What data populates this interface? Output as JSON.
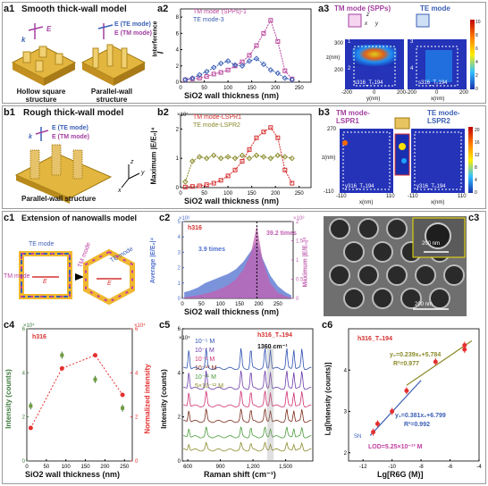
{
  "row1": {
    "a1": {
      "label": "a1",
      "title": "Smooth thick-wall model",
      "k": "k",
      "e": "E",
      "e_te": "E (TE mode)",
      "e_tm": "E (TM mode)",
      "s1": [
        "Hollow square",
        "structure"
      ],
      "s2": [
        "Parallel-wall",
        "structure"
      ],
      "axes": {
        "z": "z",
        "y": "y",
        "x": "x"
      }
    },
    "a2": {
      "label": "a2",
      "ylabel": "I",
      "ylabel_sub": "Interference",
      "xlabel": "SiO2 wall thickness (nm)",
      "chart_data": {
        "type": "line",
        "xlim": [
          0,
          275
        ],
        "ylim": [
          0,
          9
        ],
        "xticks": [
          0,
          50,
          100,
          150,
          200,
          250
        ],
        "yticks": [
          0,
          2,
          4,
          6,
          8
        ],
        "series": [
          {
            "name": "TM mode (SPPs)-1",
            "color": "#b8469b",
            "x": [
              10,
              25,
              40,
              55,
              70,
              85,
              100,
              115,
              130,
              145,
              160,
              175,
              190,
              205,
              220,
              235
            ],
            "y": [
              0.3,
              0.4,
              0.5,
              0.7,
              1.0,
              1.2,
              1.5,
              2.0,
              2.5,
              3.3,
              4.5,
              6.0,
              7.6,
              5.0,
              1.4,
              0.4
            ]
          },
          {
            "name": "TE mode-3",
            "color": "#3b5fb5",
            "x": [
              10,
              25,
              40,
              55,
              70,
              85,
              100,
              115,
              130,
              145,
              160,
              175,
              190,
              205,
              220,
              235
            ],
            "y": [
              0.3,
              0.5,
              0.9,
              1.3,
              1.8,
              2.3,
              2.6,
              2.1,
              2.0,
              2.6,
              2.9,
              2.2,
              1.5,
              1.1,
              0.5,
              0.3
            ]
          }
        ]
      }
    },
    "a3": {
      "label": "a3",
      "tm": "TM mode (SPPs)",
      "te": "TE mode",
      "ticks_y": [
        "300",
        "200"
      ],
      "ticks_x1": [
        "-200",
        "0",
        "200"
      ],
      "ticks_x2": [
        "-200",
        "0",
        "200"
      ],
      "xl1": "y(nm)",
      "xl2": "x(nm)",
      "yl": "z(nm)",
      "cap1": "s316_T₀194",
      "cap2": "s316_T₀194",
      "n1": "1",
      "n2": "2",
      "n3": "3",
      "n4": "4",
      "cb": [
        "10",
        "8",
        "6",
        "4",
        "2",
        "0"
      ],
      "axes": {
        "z": "z",
        "x": "x",
        "y": "y"
      }
    }
  },
  "row2": {
    "b1": {
      "label": "b1",
      "title": "Rough thick-wall model",
      "e_te": "E (TE mode)",
      "e_tm": "E (TM mode)",
      "k": "k",
      "s": "Parallel-wall structure",
      "axes": {
        "z": "z",
        "y": "y",
        "x": "x"
      }
    },
    "b2": {
      "label": "b2",
      "ylabel": "Maximum |E/E₀|⁴",
      "xlabel": "SiO2 wall thickness (nm)",
      "scale": "×10⁷",
      "chart_data": {
        "type": "line",
        "xlim": [
          0,
          275
        ],
        "ylim": [
          0,
          2.5
        ],
        "xticks": [
          0,
          50,
          100,
          150,
          200,
          250
        ],
        "yticks": [
          0,
          1,
          2
        ],
        "series": [
          {
            "name": "TM mode-LSPR1",
            "color": "#d63030",
            "x": [
              10,
              25,
              40,
              55,
              70,
              85,
              100,
              115,
              130,
              145,
              160,
              175,
              190,
              205,
              220,
              235
            ],
            "y": [
              0.02,
              0.04,
              0.06,
              0.1,
              0.15,
              0.25,
              0.4,
              0.6,
              0.9,
              1.3,
              1.7,
              1.9,
              2.05,
              1.7,
              0.6,
              0.15
            ]
          },
          {
            "name": "TE mode-LSPR2",
            "color": "#8a8a2a",
            "x": [
              10,
              25,
              40,
              55,
              70,
              85,
              100,
              115,
              130,
              145,
              160,
              175,
              190,
              205,
              220,
              235
            ],
            "y": [
              0.2,
              0.9,
              1.05,
              1.0,
              1.1,
              1.0,
              1.05,
              1.0,
              1.1,
              1.0,
              1.1,
              1.05,
              1.0,
              1.1,
              1.05,
              1.0
            ]
          }
        ]
      }
    },
    "b3": {
      "label": "b3",
      "tm": [
        "TM mode-",
        "LSPR1"
      ],
      "te": [
        "TE mode-",
        "LSPR2"
      ],
      "yl": "z(nm)",
      "y_top": "270",
      "y_bot": "-110",
      "x1": [
        "-110",
        "",
        "110"
      ],
      "x2": [
        "-110",
        "",
        "110"
      ],
      "xl": "x(nm)",
      "cap1": "y316_T₀194",
      "cap2": "y316_T₀194",
      "cb": [
        "20",
        "16",
        "12",
        "8",
        "4",
        "0"
      ]
    }
  },
  "row3": {
    "c1": {
      "label": "c1",
      "title": "Extension of nanowalls model",
      "te": "TE mode",
      "tm": "TM mode",
      "tm2": "TM mode",
      "te2": "TE mode",
      "e": "E"
    },
    "c2": {
      "label": "c2",
      "ylabel": "Average |E/E₀|⁴",
      "y2label": "Maximum |E/E₀|⁴",
      "xlabel": "SiO2 wall thickness (nm)",
      "tag": "h316",
      "scaleL": "×10⁶",
      "scaleR": "×10⁸",
      "ann1": "39.2 times",
      "ann2": "3.9 times",
      "chart_data": {
        "type": "area",
        "xlim": [
          0,
          290
        ],
        "ylim": [
          0,
          5
        ],
        "y2lim": [
          0,
          2
        ],
        "xticks": [
          0,
          50,
          100,
          150,
          200,
          250
        ],
        "yticks": [
          0,
          1,
          2,
          3,
          4,
          5
        ],
        "y2ticks": [
          0,
          0.5,
          1.0,
          1.5,
          2.0
        ],
        "series": [
          {
            "name": "Average",
            "color": "#4f6fcf",
            "x": [
              5,
              20,
              40,
              60,
              80,
              100,
              120,
              140,
              160,
              180,
              195,
              210,
              230,
              250,
              270,
              285
            ],
            "y": [
              0.4,
              0.5,
              0.7,
              1.0,
              1.2,
              1.4,
              1.6,
              1.9,
              2.4,
              3.1,
              3.7,
              2.6,
              1.5,
              0.8,
              0.4,
              0.2
            ]
          },
          {
            "name": "Maximum",
            "color": "#c060b0",
            "x": [
              5,
              20,
              40,
              60,
              80,
              100,
              120,
              140,
              160,
              180,
              195,
              210,
              230,
              250,
              270,
              285
            ],
            "y": [
              0.03,
              0.05,
              0.08,
              0.12,
              0.18,
              0.25,
              0.35,
              0.5,
              0.75,
              1.2,
              1.9,
              1.0,
              0.4,
              0.15,
              0.06,
              0.02
            ]
          }
        ]
      }
    },
    "c3": {
      "label": "c3",
      "scale1": "200 nm",
      "scale2": "200 nm"
    }
  },
  "row4": {
    "c4": {
      "label": "c4",
      "ylabel": "Intensity (counts)",
      "y2label": "Normalized intensity",
      "xlabel": "SiO2 wall thickness (nm)",
      "tag": "h316",
      "scaleL": "×10⁴",
      "scaleR": "×10⁴",
      "chart_data": {
        "type": "scatter",
        "xlim": [
          0,
          270
        ],
        "ylim": [
          0,
          6
        ],
        "y2lim": [
          0,
          6
        ],
        "xticks": [
          0,
          50,
          100,
          150,
          200,
          250
        ],
        "yticks": [
          0,
          2,
          4,
          6
        ],
        "y2ticks": [
          0,
          2,
          4,
          6
        ],
        "series": [
          {
            "name": "Intensity",
            "color": "#3f7a3f",
            "x": [
              10,
              90,
              175,
              245
            ],
            "y": [
              2.5,
              4.8,
              3.7,
              2.4
            ]
          },
          {
            "name": "Normalized",
            "color": "#e53030",
            "x": [
              10,
              90,
              175,
              245
            ],
            "y": [
              1.5,
              4.2,
              4.8,
              3.0
            ]
          }
        ]
      }
    },
    "c5": {
      "label": "c5",
      "ylabel": "Intensity (counts)",
      "xlabel": "Raman shift (cm⁻¹)",
      "tag": "h316_T₀194",
      "peak": "1360 cm⁻¹",
      "scale": "×10⁴",
      "conc": [
        "10⁻⁵ M",
        "10⁻⁷ M",
        "10⁻⁹ M",
        "10⁻¹⁰ M",
        "10⁻¹¹ M",
        "5×10⁻¹² M"
      ],
      "xticks": [
        "600",
        "900",
        "1,200",
        "1,500"
      ],
      "yticks": [
        "0",
        "2",
        "4",
        "6"
      ],
      "colors": [
        "#2b4fb0",
        "#6a3aa8",
        "#d03070",
        "#7a2a1a",
        "#4a9a3a",
        "#8a8a2a"
      ],
      "chart_data": {
        "type": "line",
        "xlim": [
          550,
          1750
        ],
        "ylim": [
          0,
          6
        ],
        "offsets": [
          4.2,
          3.3,
          2.5,
          1.8,
          1.1,
          0.5
        ]
      }
    },
    "c6": {
      "label": "c6",
      "ylabel": "Lg[Intensity (counts)]",
      "xlabel": "Lg[R6G (M)]",
      "tag": "h316_T₀194",
      "eq1": "y₂=0.239x₂+5.784",
      "r1": "R²=0.977",
      "eq2": "y₁=0.381x₁+6.799",
      "r2": "R²=0.992",
      "lod": "LOD=5.25×10⁻¹³ M",
      "sn": "SN",
      "xticks": [
        "-12",
        "-10",
        "-8",
        "-6",
        "-4"
      ],
      "yticks": [
        "2",
        "3",
        "4"
      ],
      "chart_data": {
        "type": "scatter",
        "xlim": [
          -13,
          -4
        ],
        "ylim": [
          1.8,
          5
        ],
        "series": [
          {
            "name": "h316_T₀194",
            "color": "#e53030",
            "x": [
              -11.3,
              -11,
              -10,
              -9,
              -7,
              -5,
              -5
            ],
            "y": [
              2.5,
              2.7,
              3.0,
              3.5,
              4.2,
              4.6,
              4.5
            ]
          }
        ]
      }
    }
  }
}
